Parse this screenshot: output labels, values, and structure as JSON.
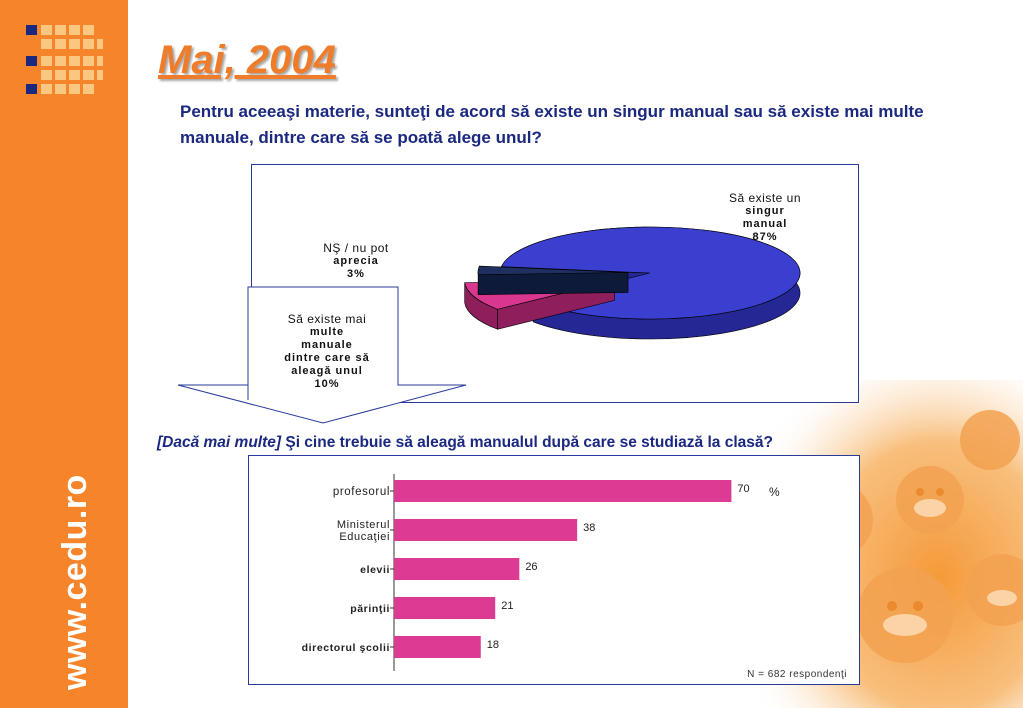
{
  "site": "www.cedu.ro",
  "title": "Mai, 2004",
  "question": "Pentru aceeaşi materie, sunteţi de acord să existe un singur manual sau să existe mai multe manuale, dintre care să se poată alege unul?",
  "sub_question": {
    "italic_part": "[Dacă mai multe]",
    "rest": " Şi cine trebuie să aleagă manualul după care se studiază la clasă?"
  },
  "colors": {
    "sidebar": "#f5842b",
    "title": "#ef7c2a",
    "text": "#1a2880",
    "pie_main": "#3a3fd0",
    "pie_secondary": "#d8368f",
    "pie_small": "#1f3060",
    "bar": "#dc3a93"
  },
  "chart_data": [
    {
      "type": "pie",
      "slices": [
        {
          "line1": "Să existe un",
          "line2": "singur",
          "line3": "manual",
          "value_label": "87%",
          "value": 87
        },
        {
          "line1": "Să existe mai",
          "line2": "multe",
          "line3": "manuale",
          "line4": "dintre care să",
          "line5": "aleagă unul",
          "value_label": "10%",
          "value": 10
        },
        {
          "line1": "NŞ / nu pot",
          "line2": "aprecia",
          "value_label": "3%",
          "value": 3
        }
      ]
    },
    {
      "type": "bar",
      "orientation": "horizontal",
      "categories": [
        {
          "line1": "profesorul",
          "line2": ""
        },
        {
          "line1": "Ministerul",
          "line2": "Educaţiei"
        },
        {
          "line1": "elevii",
          "line2": ""
        },
        {
          "line1": "părinţii",
          "line2": ""
        },
        {
          "line1": "directorul şcolii",
          "line2": ""
        }
      ],
      "values": [
        70,
        38,
        26,
        21,
        18
      ],
      "value_labels": [
        "70",
        "38",
        "26",
        "21",
        "18"
      ],
      "unit": "%",
      "xlim": [
        0,
        100
      ],
      "note": "N = 682 respondenţi"
    }
  ]
}
